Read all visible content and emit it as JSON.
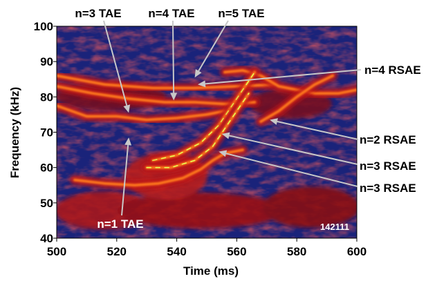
{
  "chart_data": {
    "type": "heatmap",
    "title": "",
    "xlabel": "Time (ms)",
    "ylabel": "Frequency (kHz)",
    "xlim": [
      500,
      600
    ],
    "ylim": [
      40,
      100
    ],
    "xticks": [
      "500",
      "520",
      "540",
      "560",
      "580",
      "600"
    ],
    "yticks": [
      "40",
      "50",
      "60",
      "70",
      "80",
      "90",
      "100"
    ],
    "shot_label": "142111",
    "colors": {
      "background": "#1a237a",
      "low": "#2b3a8c",
      "mid": "#c01818",
      "high": "#ff7a1a",
      "peak": "#e8ff55",
      "arrow": "#c8c8c8"
    },
    "modes": [
      {
        "label": "n=1 TAE",
        "points": [
          [
            506,
            56.5
          ],
          [
            516,
            55.5
          ],
          [
            526,
            55
          ],
          [
            534,
            55.5
          ],
          [
            542,
            57
          ],
          [
            548,
            59.5
          ],
          [
            552,
            62
          ],
          [
            556,
            64
          ],
          [
            562,
            65
          ]
        ]
      },
      {
        "label": "n=3 TAE",
        "points": [
          [
            500,
            77.5
          ],
          [
            510,
            74.5
          ],
          [
            520,
            74.5
          ],
          [
            530,
            73.5
          ],
          [
            540,
            74
          ],
          [
            550,
            75
          ],
          [
            556,
            76
          ]
        ]
      },
      {
        "label": "n=4 TAE",
        "points": [
          [
            500,
            83
          ],
          [
            512,
            81
          ],
          [
            524,
            79.5
          ],
          [
            536,
            78.5
          ],
          [
            546,
            78.5
          ],
          [
            556,
            78
          ],
          [
            566,
            78.5
          ]
        ]
      },
      {
        "label": "n=5 TAE",
        "points": [
          [
            500,
            86
          ],
          [
            516,
            83.5
          ],
          [
            532,
            82.5
          ],
          [
            546,
            82.5
          ],
          [
            560,
            83
          ],
          [
            572,
            83.5
          ]
        ]
      },
      {
        "label": "n=4 RSAE",
        "points": [
          [
            556,
            87
          ],
          [
            562,
            87.5
          ],
          [
            568,
            86
          ],
          [
            574,
            83
          ],
          [
            580,
            82
          ],
          [
            586,
            81
          ],
          [
            594,
            81
          ],
          [
            600,
            82
          ]
        ]
      },
      {
        "label": "n=2 RSAE",
        "points": [
          [
            568,
            73
          ],
          [
            574,
            76
          ],
          [
            580,
            80
          ],
          [
            586,
            83.5
          ],
          [
            592,
            86
          ]
        ]
      },
      {
        "label": "n=3 RSAE",
        "points": [
          [
            532,
            62
          ],
          [
            540,
            63.5
          ],
          [
            548,
            67
          ],
          [
            554,
            72
          ],
          [
            558,
            77
          ],
          [
            562,
            82
          ],
          [
            566,
            87
          ]
        ]
      },
      {
        "label": "n=3 RSAE",
        "points": [
          [
            530,
            60
          ],
          [
            538,
            60
          ],
          [
            546,
            62
          ],
          [
            552,
            66
          ],
          [
            556,
            71
          ],
          [
            560,
            76
          ],
          [
            564,
            81
          ]
        ]
      }
    ],
    "annotations": [
      {
        "id": "n3tae",
        "text": "n=3 TAE",
        "target": [
          524,
          75.5
        ]
      },
      {
        "id": "n4tae",
        "text": "n=4 TAE",
        "target": [
          539,
          79
        ]
      },
      {
        "id": "n5tae",
        "text": "n=5 TAE",
        "target": [
          546,
          85.5
        ]
      },
      {
        "id": "n4rsae",
        "text": "n=4 RSAE",
        "target": [
          547,
          83.5
        ]
      },
      {
        "id": "n2rsae",
        "text": "n=2 RSAE",
        "target": [
          571,
          73.5
        ]
      },
      {
        "id": "n3rsae_a",
        "text": "n=3 RSAE",
        "target": [
          555,
          69.5
        ]
      },
      {
        "id": "n3rsae_b",
        "text": "n=3 RSAE",
        "target": [
          554,
          64.5
        ]
      },
      {
        "id": "n1tae",
        "text": "n=1 TAE",
        "target": [
          524,
          68.5
        ]
      }
    ]
  }
}
